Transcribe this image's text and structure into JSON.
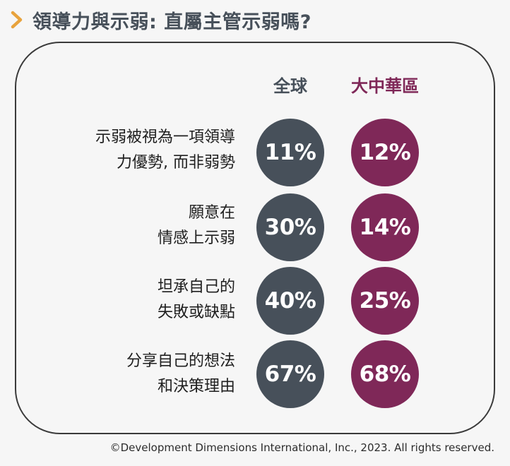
{
  "header": {
    "title": "領導力與示弱: 直屬主管示弱嗎?",
    "accent_color": "#e8a33d",
    "icon": "chevron-right-icon"
  },
  "chart_data": {
    "type": "table",
    "series": [
      {
        "name": "全球",
        "color": "#47505a",
        "values": [
          "11%",
          "30%",
          "40%",
          "67%"
        ]
      },
      {
        "name": "大中華區",
        "color": "#7f2858",
        "values": [
          "12%",
          "14%",
          "25%",
          "68%"
        ]
      }
    ],
    "rows": [
      {
        "line1": "示弱被視為一項領導",
        "line2": "力優勢, 而非弱勢"
      },
      {
        "line1": "願意在",
        "line2": "情感上示弱"
      },
      {
        "line1": "坦承自己的",
        "line2": "失敗或缺點"
      },
      {
        "line1": "分享自己的想法",
        "line2": "和決策理由"
      }
    ]
  },
  "footer": {
    "copyright": "©Development Dimensions International, Inc., 2023. All rights reserved."
  }
}
